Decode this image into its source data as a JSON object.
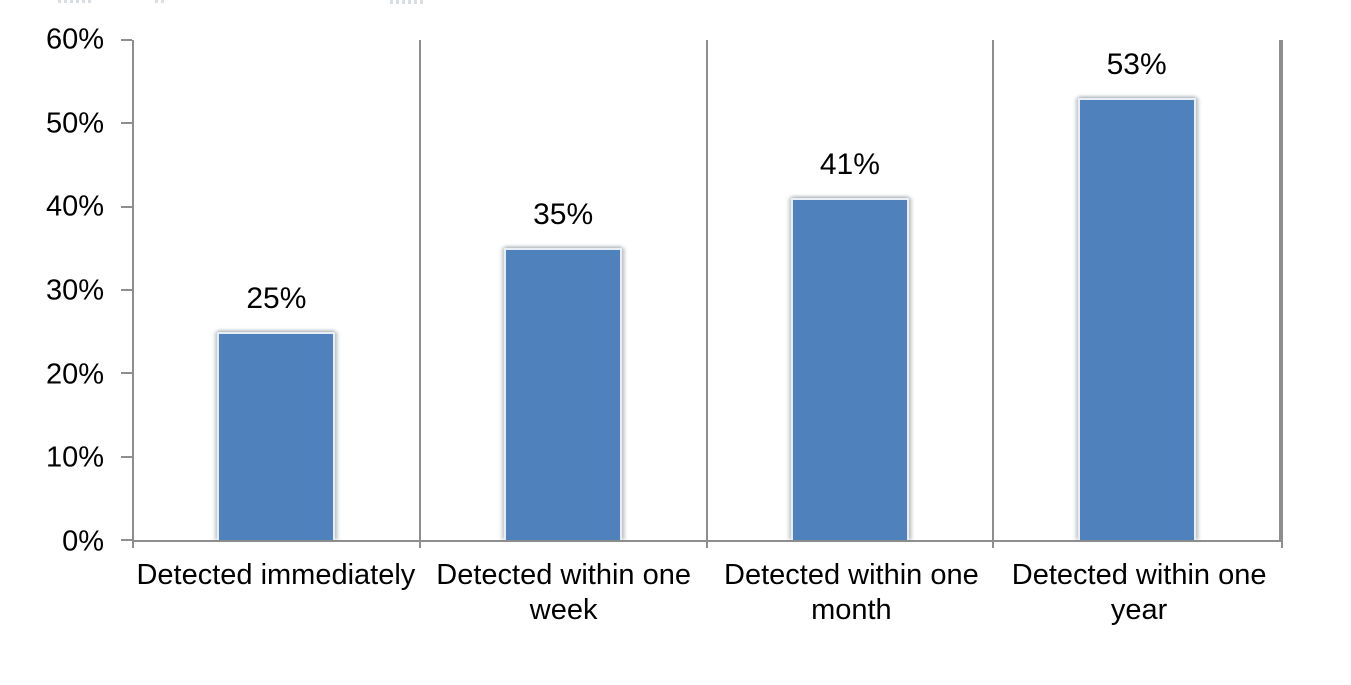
{
  "chart_data": {
    "type": "bar",
    "title": "",
    "xlabel": "",
    "ylabel": "",
    "categories": [
      "Detected immediately",
      "Detected within one week",
      "Detected within one month",
      "Detected within one year"
    ],
    "category_lines": [
      [
        "Detected immediately"
      ],
      [
        "Detected within one",
        "week"
      ],
      [
        "Detected within one",
        "month"
      ],
      [
        "Detected within one",
        "year"
      ]
    ],
    "values": [
      25,
      35,
      41,
      53
    ],
    "data_labels": [
      "25%",
      "35%",
      "41%",
      "53%"
    ],
    "y_ticks": [
      "0%",
      "10%",
      "20%",
      "30%",
      "40%",
      "50%",
      "60%"
    ],
    "ylim": [
      0,
      60
    ],
    "grid": false,
    "legend": "none",
    "bar_color": "#4f81bd",
    "bar_border_color": "#e9eef6",
    "axis_color": "#8e8e8e",
    "text_color": "#000000"
  }
}
